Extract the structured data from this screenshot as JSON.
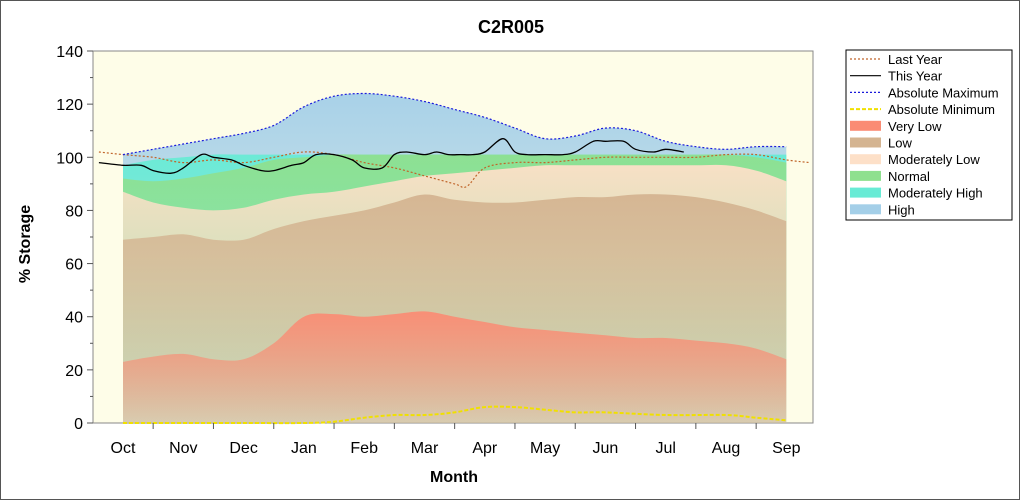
{
  "chart_data": {
    "type": "area",
    "title": "C2R005",
    "xlabel": "Month",
    "ylabel": "% Storage",
    "ylim": [
      0,
      140
    ],
    "yticks": [
      0,
      20,
      40,
      60,
      80,
      100,
      120,
      140
    ],
    "categories": [
      "Oct",
      "Nov",
      "Dec",
      "Jan",
      "Feb",
      "Mar",
      "Apr",
      "May",
      "Jun",
      "Jul",
      "Aug",
      "Sep"
    ],
    "legend_position": "top-right",
    "grid": false,
    "band_x": [
      0,
      0.5,
      1,
      1.5,
      2,
      2.5,
      3,
      3.5,
      4,
      4.5,
      5,
      5.5,
      6,
      6.5,
      7,
      7.5,
      8,
      8.5,
      9,
      9.5,
      10,
      10.5,
      11
    ],
    "bands": [
      {
        "name": "Very Low",
        "color": "#fa8c74",
        "values": [
          23,
          25,
          26,
          24,
          24,
          30,
          40,
          41,
          40,
          41,
          42,
          40,
          38,
          36,
          35,
          34,
          33,
          32,
          32,
          31,
          30,
          28,
          24
        ]
      },
      {
        "name": "Low",
        "color": "#d4b491",
        "values": [
          69,
          70,
          71,
          69,
          69,
          73,
          76,
          78,
          80,
          83,
          86,
          84,
          83,
          83,
          84,
          85,
          85,
          86,
          86,
          85,
          83,
          80,
          76
        ]
      },
      {
        "name": "Moderately Low",
        "color": "#fde0c8",
        "values": [
          87,
          83,
          81,
          80,
          81,
          84,
          86,
          87,
          89,
          91,
          93,
          94,
          95,
          96,
          97,
          97,
          97,
          97,
          97,
          97,
          97,
          95,
          91
        ]
      },
      {
        "name": "Normal",
        "color": "#8fe08f",
        "values": [
          92,
          91,
          92,
          94,
          96,
          99,
          100,
          101,
          101,
          101,
          101,
          101,
          101,
          101,
          101,
          101,
          101,
          101,
          101,
          101,
          101,
          100,
          98
        ]
      },
      {
        "name": "Moderately High",
        "color": "#68ebd5",
        "values": [
          97,
          99,
          100,
          101,
          101,
          101,
          101,
          101,
          101,
          101,
          101,
          101,
          101,
          101,
          101,
          101,
          101,
          101,
          101,
          101,
          101,
          101,
          101
        ]
      },
      {
        "name": "High",
        "color": "#a4cfe8",
        "values": [
          101,
          103,
          105,
          107,
          109,
          112,
          119,
          123,
          124,
          123,
          121,
          118,
          115,
          111,
          107,
          108,
          111,
          110,
          106,
          104,
          103,
          104,
          104
        ]
      }
    ],
    "lines": [
      {
        "name": "Last Year",
        "color": "#c0652a",
        "dash": "2,2",
        "x": [
          -0.4,
          0,
          0.5,
          1,
          1.5,
          2,
          2.5,
          3,
          3.5,
          4,
          4.5,
          5,
          5.5,
          5.7,
          6,
          6.5,
          7,
          7.5,
          8,
          8.5,
          9,
          9.5,
          10,
          10.5,
          11,
          11.4
        ],
        "y": [
          102,
          101,
          100,
          98,
          99,
          98,
          100,
          102,
          101,
          98,
          96,
          93,
          90,
          89,
          96,
          98,
          98,
          99,
          100,
          100,
          100,
          100,
          101,
          101,
          99,
          98
        ]
      },
      {
        "name": "This Year",
        "color": "#000000",
        "dash": "",
        "x": [
          -0.4,
          0,
          0.3,
          0.5,
          0.8,
          1,
          1.3,
          1.5,
          1.8,
          2,
          2.3,
          2.5,
          2.8,
          3,
          3.2,
          3.5,
          3.8,
          4,
          4.3,
          4.5,
          4.7,
          5,
          5.2,
          5.4,
          5.6,
          5.8,
          6,
          6.3,
          6.5,
          6.7,
          7,
          7.3,
          7.5,
          7.8,
          8,
          8.3,
          8.5,
          8.8,
          9,
          9.3
        ],
        "y": [
          98,
          97,
          97,
          95,
          94,
          96,
          101,
          100,
          99,
          97,
          95,
          95,
          97,
          98,
          101,
          101,
          99,
          96,
          96,
          101,
          102,
          101,
          102,
          101,
          101,
          101,
          102,
          107,
          102,
          101,
          101,
          101,
          102,
          106,
          106,
          106,
          103,
          102,
          103,
          102
        ]
      },
      {
        "name": "Absolute Maximum",
        "color": "#1a1adb",
        "dash": "2,2",
        "x": [
          0,
          0.5,
          1,
          1.5,
          2,
          2.5,
          3,
          3.5,
          4,
          4.5,
          5,
          5.5,
          6,
          6.5,
          7,
          7.5,
          8,
          8.5,
          9,
          9.5,
          10,
          10.5,
          11
        ],
        "y": [
          101,
          103,
          105,
          107,
          109,
          112,
          119,
          123,
          124,
          123,
          121,
          118,
          115,
          111,
          107,
          108,
          111,
          110,
          106,
          104,
          103,
          104,
          104
        ]
      },
      {
        "name": "Absolute Minimum",
        "color": "#f0e000",
        "dash": "4,2",
        "x": [
          0,
          1,
          2,
          3,
          3.5,
          4,
          4.5,
          5,
          5.5,
          6,
          6.5,
          7,
          7.5,
          8,
          9,
          10,
          10.5,
          11
        ],
        "y": [
          0,
          0,
          0,
          0,
          0.5,
          2,
          3,
          3,
          4,
          6,
          6,
          5,
          4,
          4,
          3,
          3,
          2,
          1
        ]
      }
    ],
    "legend": [
      {
        "label": "Last Year",
        "kind": "line",
        "color": "#c0652a",
        "dash": "2,2"
      },
      {
        "label": "This Year",
        "kind": "line",
        "color": "#000000",
        "dash": ""
      },
      {
        "label": "Absolute Maximum",
        "kind": "line",
        "color": "#1a1adb",
        "dash": "2,2"
      },
      {
        "label": "Absolute Minimum",
        "kind": "line",
        "color": "#f0e000",
        "dash": "4,2"
      },
      {
        "label": "Very Low",
        "kind": "band",
        "color": "#fa8c74"
      },
      {
        "label": "Low",
        "kind": "band",
        "color": "#d4b491"
      },
      {
        "label": "Moderately Low",
        "kind": "band",
        "color": "#fde0c8"
      },
      {
        "label": "Normal",
        "kind": "band",
        "color": "#8fe08f"
      },
      {
        "label": "Moderately High",
        "kind": "band",
        "color": "#68ebd5"
      },
      {
        "label": "High",
        "kind": "band",
        "color": "#a4cfe8"
      }
    ]
  }
}
